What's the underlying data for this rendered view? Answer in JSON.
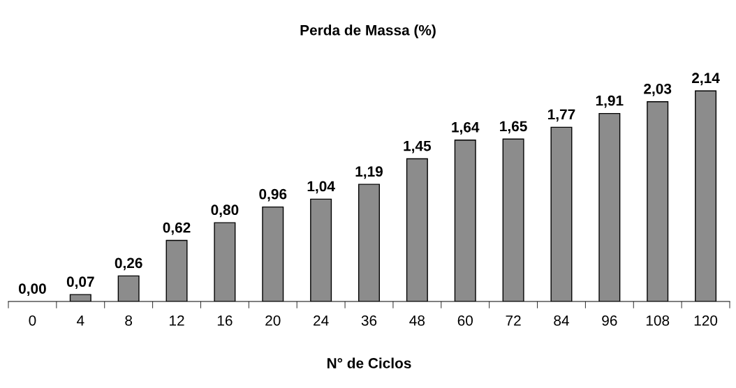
{
  "chart_data": {
    "type": "bar",
    "title": "Perda de Massa (%)",
    "xlabel": "N° de Ciclos",
    "categories": [
      "0",
      "4",
      "8",
      "12",
      "16",
      "20",
      "24",
      "36",
      "48",
      "60",
      "72",
      "84",
      "96",
      "108",
      "120"
    ],
    "values": [
      0.0,
      0.07,
      0.26,
      0.62,
      0.8,
      0.96,
      1.04,
      1.19,
      1.45,
      1.64,
      1.65,
      1.77,
      1.91,
      2.03,
      2.14
    ],
    "value_labels": [
      "0,00",
      "0,07",
      "0,26",
      "0,62",
      "0,80",
      "0,96",
      "1,04",
      "1,19",
      "1,45",
      "1,64",
      "1,65",
      "1,77",
      "1,91",
      "2,03",
      "2,14"
    ],
    "color": "#8c8c8c",
    "grid": false
  }
}
